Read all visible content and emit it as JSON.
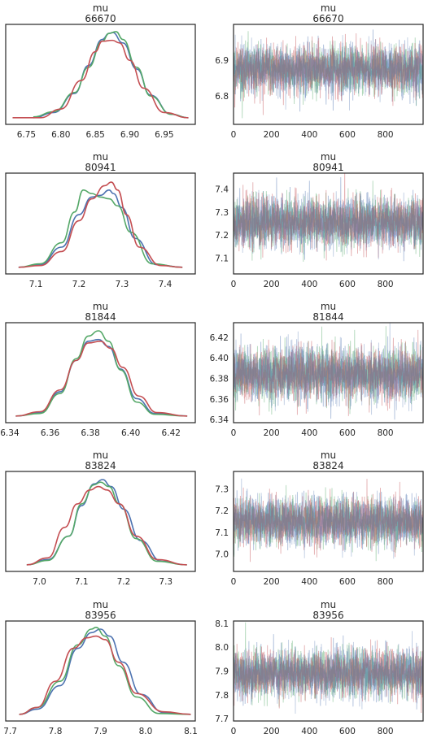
{
  "colors": {
    "blue": "#4c72b0",
    "green": "#55a868",
    "red": "#c44e52",
    "trace_blend": "#a08a7e",
    "frame": "#262626"
  },
  "chart_data": [
    {
      "type": "area",
      "title": "mu",
      "subtitle": "66670",
      "plot": "kde",
      "xlim": [
        6.72,
        6.995
      ],
      "xticks": [
        "6.75",
        "6.80",
        "6.85",
        "6.90",
        "6.95"
      ],
      "xtick_values": [
        6.75,
        6.8,
        6.85,
        6.9,
        6.95
      ],
      "series": [
        {
          "color": "blue",
          "x": [
            6.76,
            6.79,
            6.82,
            6.84,
            6.86,
            6.87,
            6.875,
            6.89,
            6.91,
            6.93,
            6.96,
            6.985
          ],
          "y": [
            0.02,
            0.08,
            0.3,
            0.62,
            0.92,
            0.99,
            1.0,
            0.88,
            0.58,
            0.28,
            0.06,
            0.02
          ]
        },
        {
          "color": "green",
          "x": [
            6.76,
            6.79,
            6.82,
            6.84,
            6.86,
            6.87,
            6.88,
            6.89,
            6.91,
            6.93,
            6.96,
            6.985
          ],
          "y": [
            0.03,
            0.09,
            0.31,
            0.6,
            0.9,
            0.99,
            1.01,
            0.92,
            0.6,
            0.27,
            0.06,
            0.02
          ]
        },
        {
          "color": "red",
          "x": [
            6.73,
            6.77,
            6.8,
            6.83,
            6.85,
            6.86,
            6.875,
            6.885,
            6.9,
            6.92,
            6.95,
            6.985
          ],
          "y": [
            0.02,
            0.02,
            0.12,
            0.45,
            0.78,
            0.9,
            0.91,
            0.88,
            0.68,
            0.36,
            0.08,
            0.02
          ]
        }
      ]
    },
    {
      "type": "line",
      "title": "mu",
      "subtitle": "66670",
      "plot": "trace",
      "xlim": [
        0,
        999
      ],
      "xticks": [
        "0",
        "200",
        "400",
        "600",
        "800"
      ],
      "xtick_values": [
        0,
        200,
        400,
        600,
        800
      ],
      "ylim": [
        6.72,
        7.0
      ],
      "yticks": [
        "6.8",
        "6.9"
      ],
      "ytick_values": [
        6.8,
        6.9
      ],
      "center": 6.874,
      "spread": 0.034
    },
    {
      "type": "area",
      "title": "mu",
      "subtitle": "80941",
      "plot": "kde",
      "xlim": [
        7.03,
        7.47
      ],
      "xticks": [
        "7.1",
        "7.2",
        "7.3",
        "7.4"
      ],
      "xtick_values": [
        7.1,
        7.2,
        7.3,
        7.4
      ],
      "series": [
        {
          "color": "blue",
          "x": [
            7.06,
            7.11,
            7.16,
            7.2,
            7.23,
            7.25,
            7.27,
            7.28,
            7.3,
            7.33,
            7.38,
            7.44
          ],
          "y": [
            0.02,
            0.05,
            0.25,
            0.62,
            0.82,
            0.84,
            0.9,
            0.86,
            0.7,
            0.35,
            0.05,
            0.02
          ]
        },
        {
          "color": "green",
          "x": [
            7.06,
            7.11,
            7.16,
            7.19,
            7.21,
            7.23,
            7.25,
            7.27,
            7.29,
            7.32,
            7.37,
            7.44
          ],
          "y": [
            0.02,
            0.06,
            0.3,
            0.65,
            0.9,
            0.86,
            0.82,
            0.8,
            0.72,
            0.42,
            0.06,
            0.02
          ]
        },
        {
          "color": "red",
          "x": [
            7.06,
            7.11,
            7.16,
            7.2,
            7.23,
            7.26,
            7.275,
            7.29,
            7.31,
            7.34,
            7.39,
            7.44
          ],
          "y": [
            0.02,
            0.04,
            0.2,
            0.55,
            0.8,
            0.95,
            0.99,
            0.9,
            0.62,
            0.25,
            0.04,
            0.02
          ]
        }
      ]
    },
    {
      "type": "line",
      "title": "mu",
      "subtitle": "80941",
      "plot": "trace",
      "xlim": [
        0,
        999
      ],
      "xticks": [
        "0",
        "200",
        "400",
        "600",
        "800"
      ],
      "xtick_values": [
        0,
        200,
        400,
        600,
        800
      ],
      "ylim": [
        7.03,
        7.47
      ],
      "yticks": [
        "7.1",
        "7.2",
        "7.3",
        "7.4"
      ],
      "ytick_values": [
        7.1,
        7.2,
        7.3,
        7.4
      ],
      "center": 7.255,
      "spread": 0.055
    },
    {
      "type": "area",
      "title": "mu",
      "subtitle": "81844",
      "plot": "kde",
      "xlim": [
        6.338,
        6.432
      ],
      "xticks": [
        "6.34",
        "6.36",
        "6.38",
        "6.40",
        "6.42"
      ],
      "xtick_values": [
        6.34,
        6.36,
        6.38,
        6.4,
        6.42
      ],
      "series": [
        {
          "color": "blue",
          "x": [
            6.343,
            6.355,
            6.365,
            6.373,
            6.379,
            6.384,
            6.389,
            6.395,
            6.403,
            6.412,
            6.428
          ],
          "y": [
            0.02,
            0.06,
            0.3,
            0.66,
            0.88,
            0.9,
            0.82,
            0.56,
            0.22,
            0.05,
            0.02
          ]
        },
        {
          "color": "green",
          "x": [
            6.343,
            6.355,
            6.365,
            6.373,
            6.379,
            6.384,
            6.389,
            6.395,
            6.403,
            6.412,
            6.428
          ],
          "y": [
            0.02,
            0.05,
            0.28,
            0.68,
            0.94,
            1.0,
            0.88,
            0.55,
            0.18,
            0.04,
            0.02
          ]
        },
        {
          "color": "red",
          "x": [
            6.343,
            6.355,
            6.365,
            6.373,
            6.379,
            6.385,
            6.39,
            6.396,
            6.404,
            6.413,
            6.428
          ],
          "y": [
            0.02,
            0.07,
            0.32,
            0.66,
            0.86,
            0.88,
            0.8,
            0.58,
            0.25,
            0.06,
            0.02
          ]
        }
      ]
    },
    {
      "type": "line",
      "title": "mu",
      "subtitle": "81844",
      "plot": "trace",
      "xlim": [
        0,
        999
      ],
      "xticks": [
        "0",
        "200",
        "400",
        "600",
        "800"
      ],
      "xtick_values": [
        0,
        200,
        400,
        600,
        800
      ],
      "ylim": [
        6.337,
        6.434
      ],
      "yticks": [
        "6.34",
        "6.36",
        "6.38",
        "6.40",
        "6.42"
      ],
      "ytick_values": [
        6.34,
        6.36,
        6.38,
        6.4,
        6.42
      ],
      "center": 6.384,
      "spread": 0.013
    },
    {
      "type": "area",
      "title": "mu",
      "subtitle": "83824",
      "plot": "kde",
      "xlim": [
        6.92,
        7.37
      ],
      "xticks": [
        "7.0",
        "7.1",
        "7.2",
        "7.3"
      ],
      "xtick_values": [
        7.0,
        7.1,
        7.2,
        7.3
      ],
      "series": [
        {
          "color": "blue",
          "x": [
            6.97,
            7.02,
            7.07,
            7.1,
            7.13,
            7.15,
            7.17,
            7.2,
            7.24,
            7.29,
            7.35
          ],
          "y": [
            0.02,
            0.08,
            0.35,
            0.7,
            0.95,
            1.0,
            0.92,
            0.66,
            0.3,
            0.06,
            0.02
          ]
        },
        {
          "color": "green",
          "x": [
            6.97,
            7.02,
            7.07,
            7.1,
            7.13,
            7.145,
            7.165,
            7.19,
            7.23,
            7.28,
            7.35
          ],
          "y": [
            0.02,
            0.07,
            0.35,
            0.72,
            0.94,
            0.97,
            0.92,
            0.72,
            0.32,
            0.06,
            0.02
          ]
        },
        {
          "color": "red",
          "x": [
            6.97,
            7.02,
            7.06,
            7.09,
            7.12,
            7.14,
            7.16,
            7.19,
            7.23,
            7.28,
            7.35
          ],
          "y": [
            0.02,
            0.1,
            0.45,
            0.72,
            0.88,
            0.92,
            0.88,
            0.72,
            0.35,
            0.08,
            0.02
          ]
        }
      ]
    },
    {
      "type": "line",
      "title": "mu",
      "subtitle": "83824",
      "plot": "trace",
      "xlim": [
        0,
        999
      ],
      "xticks": [
        "0",
        "200",
        "400",
        "600",
        "800"
      ],
      "xtick_values": [
        0,
        200,
        400,
        600,
        800
      ],
      "ylim": [
        6.92,
        7.38
      ],
      "yticks": [
        "7.0",
        "7.1",
        "7.2",
        "7.3"
      ],
      "ytick_values": [
        7.0,
        7.1,
        7.2,
        7.3
      ],
      "center": 7.15,
      "spread": 0.055
    },
    {
      "type": "area",
      "title": "mu",
      "subtitle": "83956",
      "plot": "kde",
      "xlim": [
        7.69,
        8.11
      ],
      "xticks": [
        "7.7",
        "7.8",
        "7.9",
        "8.0",
        "8.1"
      ],
      "xtick_values": [
        7.7,
        7.8,
        7.9,
        8.0,
        8.1
      ],
      "series": [
        {
          "color": "blue",
          "x": [
            7.72,
            7.76,
            7.81,
            7.85,
            7.88,
            7.9,
            7.92,
            7.95,
            7.99,
            8.04,
            8.1
          ],
          "y": [
            0.02,
            0.08,
            0.35,
            0.78,
            0.96,
            1.0,
            0.92,
            0.62,
            0.25,
            0.04,
            0.02
          ]
        },
        {
          "color": "green",
          "x": [
            7.72,
            7.76,
            7.81,
            7.85,
            7.88,
            7.89,
            7.91,
            7.94,
            7.98,
            8.03,
            8.1
          ],
          "y": [
            0.02,
            0.1,
            0.4,
            0.82,
            1.0,
            1.02,
            0.92,
            0.58,
            0.22,
            0.03,
            0.02
          ]
        },
        {
          "color": "red",
          "x": [
            7.72,
            7.76,
            7.8,
            7.84,
            7.87,
            7.89,
            7.91,
            7.94,
            7.98,
            8.04,
            8.1
          ],
          "y": [
            0.02,
            0.1,
            0.4,
            0.78,
            0.9,
            0.92,
            0.88,
            0.62,
            0.26,
            0.05,
            0.02
          ]
        }
      ]
    },
    {
      "type": "line",
      "title": "mu",
      "subtitle": "83956",
      "plot": "trace",
      "xlim": [
        0,
        999
      ],
      "xticks": [
        "0",
        "200",
        "400",
        "600",
        "800"
      ],
      "xtick_values": [
        0,
        200,
        400,
        600,
        800
      ],
      "ylim": [
        7.69,
        8.11
      ],
      "yticks": [
        "7.7",
        "7.8",
        "7.9",
        "8.0",
        "8.1"
      ],
      "ytick_values": [
        7.7,
        7.8,
        7.9,
        8.0,
        8.1
      ],
      "center": 7.89,
      "spread": 0.05
    }
  ]
}
